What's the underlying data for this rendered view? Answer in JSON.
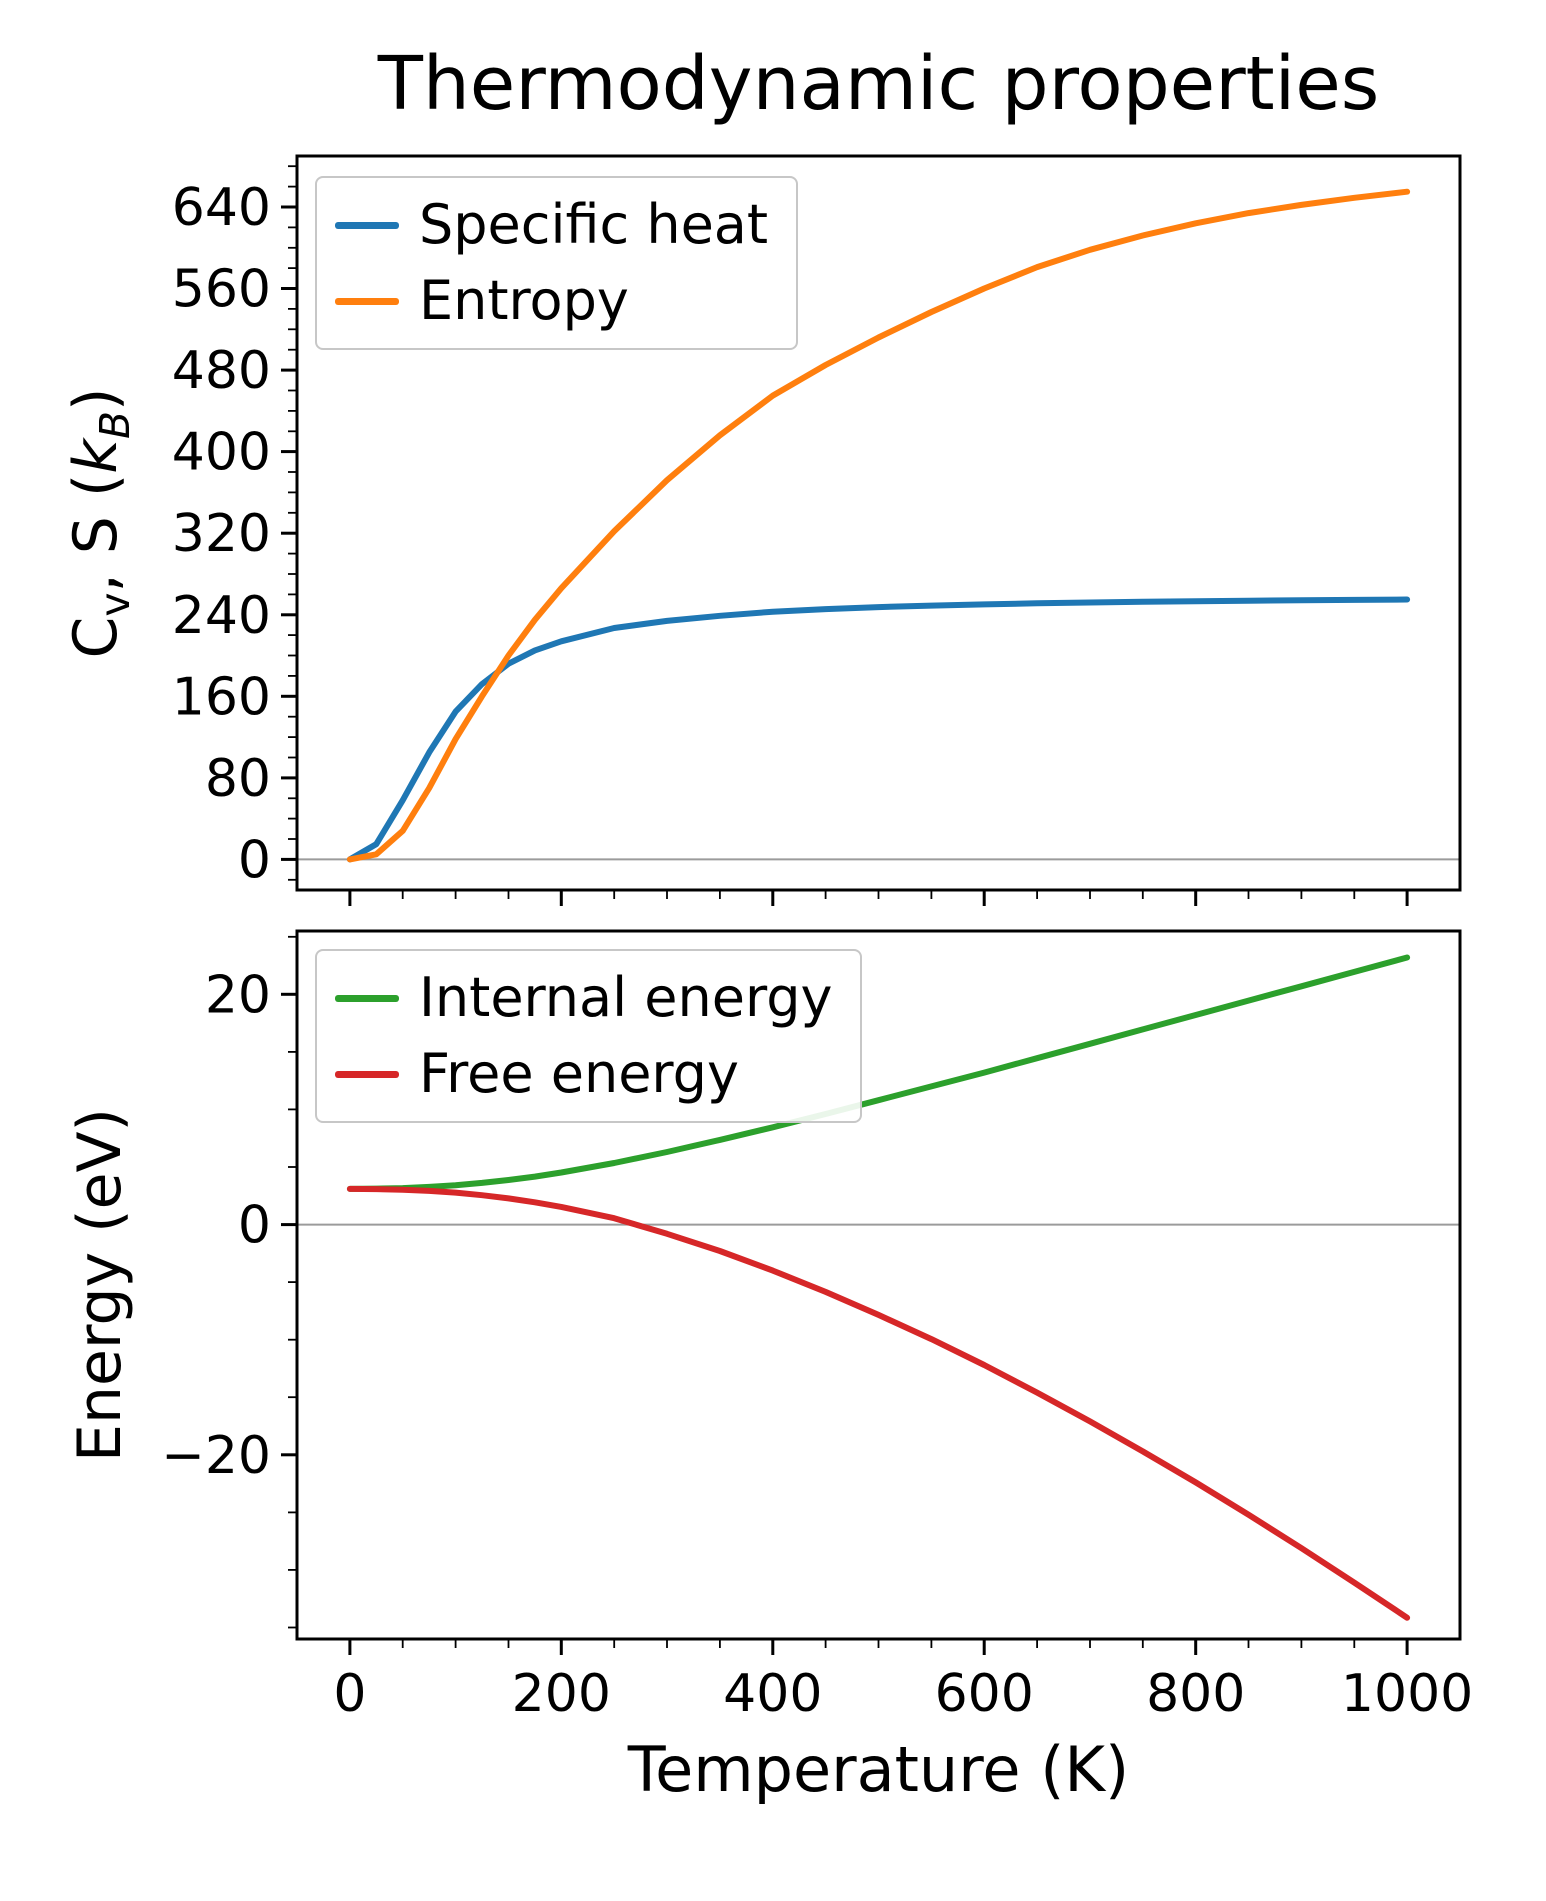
{
  "title": "Thermodynamic properties",
  "chart_data": [
    {
      "type": "line",
      "ylabel": "Cv, S (kB)",
      "ylabel_rich": [
        {
          "t": "C"
        },
        {
          "t": "v",
          "sub": true
        },
        {
          "t": ", S ("
        },
        {
          "t": "k",
          "italic": true
        },
        {
          "t": "B",
          "sub": true,
          "italic": true
        },
        {
          "t": ")"
        }
      ],
      "xlabel": "",
      "xlim": [
        -50,
        1050
      ],
      "ylim": [
        -30,
        690
      ],
      "xticks": [
        0,
        200,
        400,
        600,
        800,
        1000
      ],
      "yticks": [
        0,
        80,
        160,
        240,
        320,
        400,
        480,
        560,
        640
      ],
      "grid": false,
      "zero_line": true,
      "legend_position": "upper left",
      "x": [
        0,
        25,
        50,
        75,
        100,
        125,
        150,
        175,
        200,
        250,
        300,
        350,
        400,
        450,
        500,
        550,
        600,
        650,
        700,
        750,
        800,
        850,
        900,
        950,
        1000
      ],
      "series": [
        {
          "name": "Specific heat",
          "color": "#1f77b4",
          "values": [
            0,
            15,
            58,
            105,
            145,
            172,
            192,
            205,
            214,
            227,
            234,
            239,
            243,
            245.5,
            247.5,
            249,
            250.2,
            251.2,
            252,
            252.7,
            253.3,
            253.8,
            254.2,
            254.6,
            255
          ]
        },
        {
          "name": "Entropy",
          "color": "#ff7f0e",
          "values": [
            0,
            5,
            28,
            70,
            118,
            160,
            200,
            235,
            266,
            322,
            372,
            416,
            455,
            485,
            512,
            537,
            560,
            581,
            598,
            612,
            624,
            634,
            642,
            649,
            655
          ]
        }
      ]
    },
    {
      "type": "line",
      "ylabel": "Energy (eV)",
      "xlabel": "Temperature (K)",
      "xlim": [
        -50,
        1050
      ],
      "ylim": [
        -36,
        25.5
      ],
      "xticks": [
        0,
        200,
        400,
        600,
        800,
        1000
      ],
      "yticks": [
        -20,
        0,
        20
      ],
      "grid": false,
      "zero_line": true,
      "legend_position": "upper left",
      "x": [
        0,
        25,
        50,
        75,
        100,
        125,
        150,
        175,
        200,
        250,
        300,
        350,
        400,
        450,
        500,
        550,
        600,
        650,
        700,
        750,
        800,
        850,
        900,
        950,
        1000
      ],
      "series": [
        {
          "name": "Internal energy",
          "color": "#2ca02c",
          "values": [
            3.1,
            3.12,
            3.17,
            3.27,
            3.42,
            3.62,
            3.87,
            4.17,
            4.52,
            5.35,
            6.3,
            7.35,
            8.45,
            9.6,
            10.8,
            12.0,
            13.2,
            14.45,
            15.7,
            16.95,
            18.2,
            19.45,
            20.7,
            21.95,
            23.2
          ]
        },
        {
          "name": "Free energy",
          "color": "#d62728",
          "values": [
            3.1,
            3.08,
            3.02,
            2.92,
            2.78,
            2.55,
            2.27,
            1.93,
            1.53,
            0.55,
            -0.8,
            -2.3,
            -4.0,
            -5.85,
            -7.85,
            -9.95,
            -12.2,
            -14.6,
            -17.1,
            -19.7,
            -22.4,
            -25.2,
            -28.1,
            -31.1,
            -34.15
          ]
        }
      ]
    }
  ]
}
